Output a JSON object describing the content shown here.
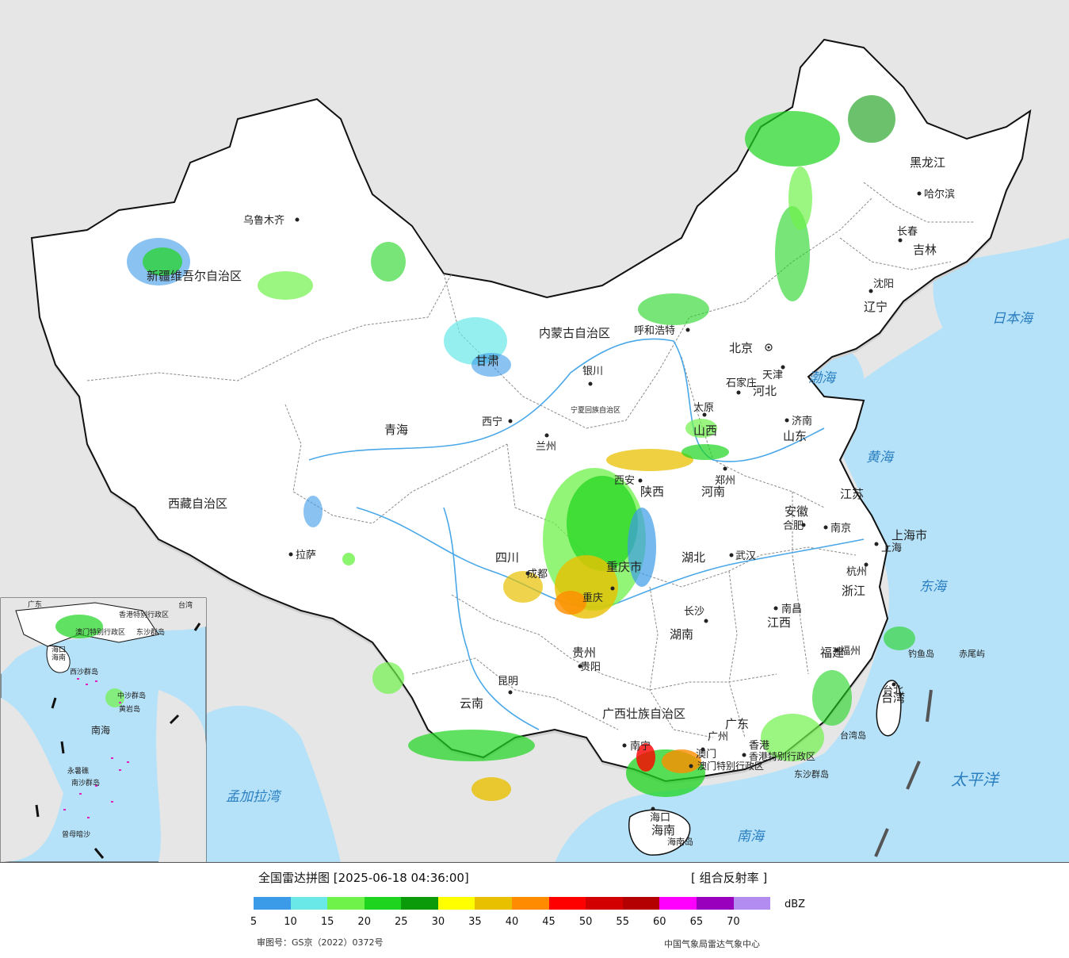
{
  "map": {
    "provinces": [
      {
        "name": "新疆维吾尔自治区"
      },
      {
        "name": "西藏自治区"
      },
      {
        "name": "青海"
      },
      {
        "name": "甘肃"
      },
      {
        "name": "内蒙古自治区"
      },
      {
        "name": "黑龙江"
      },
      {
        "name": "吉林"
      },
      {
        "name": "辽宁"
      },
      {
        "name": "河北"
      },
      {
        "name": "山西"
      },
      {
        "name": "山东"
      },
      {
        "name": "河南"
      },
      {
        "name": "陕西"
      },
      {
        "name": "宁夏回族自治区"
      },
      {
        "name": "四川"
      },
      {
        "name": "重庆市"
      },
      {
        "name": "湖北"
      },
      {
        "name": "安徽"
      },
      {
        "name": "江苏"
      },
      {
        "name": "上海市"
      },
      {
        "name": "浙江"
      },
      {
        "name": "江西"
      },
      {
        "name": "湖南"
      },
      {
        "name": "贵州"
      },
      {
        "name": "云南"
      },
      {
        "name": "广西壮族自治区"
      },
      {
        "name": "广东"
      },
      {
        "name": "福建"
      },
      {
        "name": "台湾"
      },
      {
        "name": "海南"
      },
      {
        "name": "香港特别行政区"
      },
      {
        "name": "澳门特别行政区"
      }
    ],
    "cities": [
      "乌鲁木齐",
      "拉萨",
      "西宁",
      "兰州",
      "银川",
      "呼和浩特",
      "北京",
      "天津",
      "石家庄",
      "太原",
      "济南",
      "郑州",
      "西安",
      "成都",
      "重庆",
      "武汉",
      "合肥",
      "南京",
      "上海",
      "杭州",
      "长沙",
      "南昌",
      "福州",
      "贵阳",
      "昆明",
      "南宁",
      "广州",
      "香港",
      "澳门",
      "海口",
      "台北",
      "哈尔滨",
      "长春",
      "沈阳"
    ],
    "seas": [
      "日本海",
      "渤海",
      "黄海",
      "东海",
      "太平洋",
      "南海",
      "孟加拉湾"
    ],
    "islands": [
      "钓鱼岛",
      "赤尾屿",
      "台湾岛",
      "东沙群岛",
      "海南岛"
    ],
    "inset_labels": [
      "广东",
      "香港特别行政区",
      "澳门特别行政区",
      "海口",
      "海南",
      "东沙群岛",
      "西沙群岛",
      "中沙群岛",
      "南海",
      "黄岩岛",
      "永暑礁",
      "南沙群岛",
      "曾母暗沙",
      "台湾"
    ],
    "colors": {
      "land": "#ffffff",
      "sea": "#b5e2f9",
      "outside": "#e6e6e6",
      "border": "#111111",
      "province_line": "#999999",
      "river": "#4aa8e8"
    }
  },
  "legend": {
    "title": "全国雷达拼图 [2025-06-18 04:36:00]",
    "product": "[ 组合反射率 ]",
    "unit": "dBZ",
    "colors": [
      "#3c9be8",
      "#6ae8e8",
      "#6ff24a",
      "#1ed41e",
      "#0a9a0a",
      "#ffff00",
      "#e8c000",
      "#ff8c00",
      "#ff0000",
      "#d20000",
      "#b40000",
      "#ff00ff",
      "#9800bd",
      "#b28cf0"
    ],
    "ticks": [
      "5",
      "10",
      "15",
      "20",
      "25",
      "30",
      "35",
      "40",
      "45",
      "50",
      "55",
      "60",
      "65",
      "70"
    ],
    "approval": "审图号：GS京（2022）0372号",
    "source": "中国气象局雷达气象中心"
  }
}
